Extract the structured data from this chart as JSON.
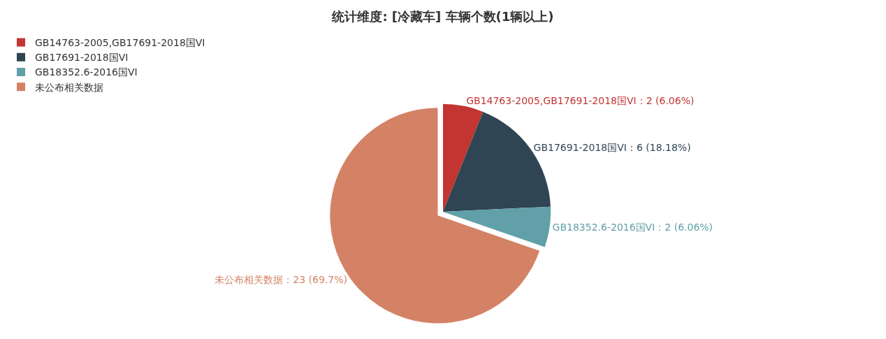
{
  "chart_data": {
    "type": "pie",
    "title": "统计维度: [冷藏车] 车辆个数(1辆以上)",
    "categories": [
      "GB14763-2005,GB17691-2018国VI",
      "GB17691-2018国VI",
      "GB18352.6-2016国VI",
      "未公布相关数据"
    ],
    "values": [
      6.06,
      18.18,
      6.06,
      69.7
    ],
    "value_labels": [
      "GB14763-2005,GB17691-2018国VI：2 (6.06%)",
      "GB17691-2018国VI：6 (18.18%)",
      "GB18352.6-2016国VI：2 (6.06%)",
      "未公布相关数据：23 (69.7%)"
    ],
    "colors": [
      "#c23531",
      "#2f4554",
      "#61a0a8",
      "#d48265"
    ],
    "legend": "top left"
  }
}
